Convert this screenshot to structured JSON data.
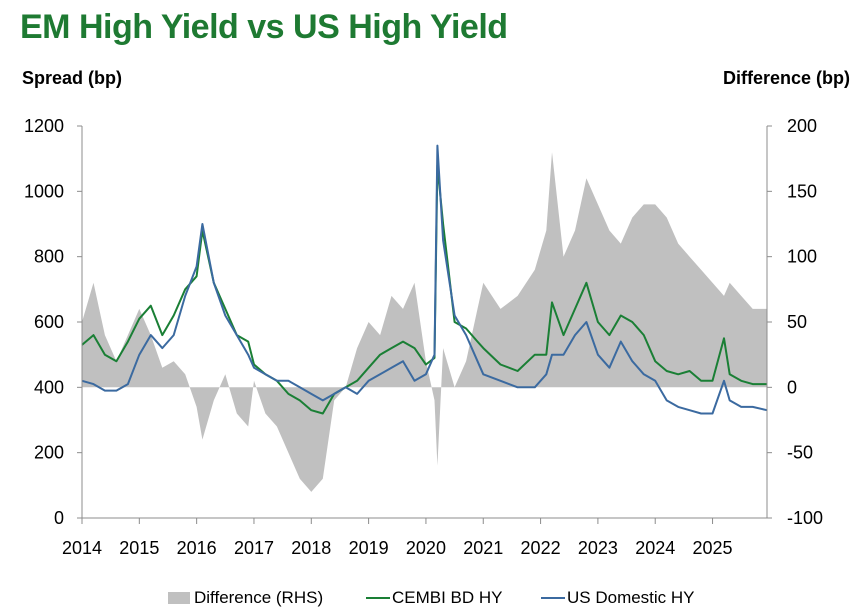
{
  "header": {
    "title": "EM High Yield vs US High Yield",
    "left_axis_title": "Spread (bp)",
    "right_axis_title": "Difference (bp)"
  },
  "colors": {
    "title": "#1e7a32",
    "difference": "#c0c0c0",
    "cembi": "#1a7f35",
    "us": "#3b6aa0"
  },
  "legend": [
    {
      "label": "Difference (RHS)",
      "kind": "area",
      "color": "#c0c0c0"
    },
    {
      "label": "CEMBI BD HY",
      "kind": "line",
      "color": "#1a7f35"
    },
    {
      "label": "US Domestic HY",
      "kind": "line",
      "color": "#3b6aa0"
    }
  ],
  "chart_data": {
    "type": "line",
    "title": "EM High Yield vs US High Yield",
    "ylabel": "Spread (bp)",
    "y2label": "Difference (bp)",
    "ylim": [
      0,
      1200
    ],
    "y2lim": [
      -100,
      200
    ],
    "yticks": [
      0,
      200,
      400,
      600,
      800,
      1000,
      1200
    ],
    "y2ticks": [
      -100,
      -50,
      0,
      50,
      100,
      150,
      200
    ],
    "xlim": [
      2014.0,
      2025.95
    ],
    "xticks": [
      2014,
      2015,
      2016,
      2017,
      2018,
      2019,
      2020,
      2021,
      2022,
      2023,
      2024,
      2025
    ],
    "grid": false,
    "legend_position": "bottom",
    "x": [
      2014.0,
      2014.2,
      2014.4,
      2014.6,
      2014.8,
      2015.0,
      2015.2,
      2015.4,
      2015.6,
      2015.8,
      2016.0,
      2016.1,
      2016.3,
      2016.5,
      2016.7,
      2016.9,
      2017.0,
      2017.2,
      2017.4,
      2017.6,
      2017.8,
      2018.0,
      2018.2,
      2018.4,
      2018.6,
      2018.8,
      2019.0,
      2019.2,
      2019.4,
      2019.6,
      2019.8,
      2020.0,
      2020.15,
      2020.2,
      2020.3,
      2020.5,
      2020.7,
      2020.9,
      2021.0,
      2021.3,
      2021.6,
      2021.9,
      2022.1,
      2022.2,
      2022.4,
      2022.6,
      2022.8,
      2023.0,
      2023.2,
      2023.4,
      2023.6,
      2023.8,
      2024.0,
      2024.2,
      2024.4,
      2024.6,
      2024.8,
      2025.0,
      2025.2,
      2025.3,
      2025.5,
      2025.7,
      2025.95
    ],
    "series": [
      {
        "name": "CEMBI BD HY",
        "axis": "left",
        "values": [
          530,
          560,
          500,
          480,
          540,
          610,
          650,
          560,
          620,
          700,
          740,
          880,
          720,
          640,
          560,
          540,
          470,
          440,
          420,
          380,
          360,
          330,
          320,
          380,
          400,
          420,
          460,
          500,
          520,
          540,
          520,
          470,
          490,
          1080,
          900,
          600,
          580,
          540,
          520,
          470,
          450,
          500,
          500,
          660,
          560,
          640,
          720,
          600,
          560,
          620,
          600,
          560,
          480,
          450,
          440,
          450,
          420,
          420,
          550,
          440,
          420,
          410,
          410
        ]
      },
      {
        "name": "US Domestic HY",
        "axis": "left",
        "values": [
          420,
          410,
          390,
          390,
          410,
          500,
          560,
          520,
          560,
          680,
          770,
          900,
          720,
          620,
          560,
          500,
          460,
          440,
          420,
          420,
          400,
          380,
          360,
          380,
          400,
          380,
          420,
          440,
          460,
          480,
          420,
          440,
          500,
          1140,
          850,
          620,
          560,
          480,
          440,
          420,
          400,
          400,
          440,
          500,
          500,
          560,
          600,
          500,
          460,
          540,
          480,
          440,
          420,
          360,
          340,
          330,
          320,
          320,
          420,
          360,
          340,
          340,
          330
        ]
      },
      {
        "name": "Difference (RHS)",
        "axis": "right",
        "type": "area",
        "values": [
          50,
          80,
          40,
          20,
          40,
          60,
          40,
          15,
          20,
          10,
          -15,
          -40,
          -10,
          10,
          -20,
          -30,
          5,
          -20,
          -30,
          -50,
          -70,
          -80,
          -70,
          -10,
          0,
          30,
          50,
          40,
          70,
          60,
          80,
          20,
          -10,
          -60,
          30,
          0,
          20,
          60,
          80,
          60,
          70,
          90,
          120,
          180,
          100,
          120,
          160,
          140,
          120,
          110,
          130,
          140,
          140,
          130,
          110,
          100,
          90,
          80,
          70,
          80,
          70,
          60,
          60
        ]
      }
    ]
  }
}
